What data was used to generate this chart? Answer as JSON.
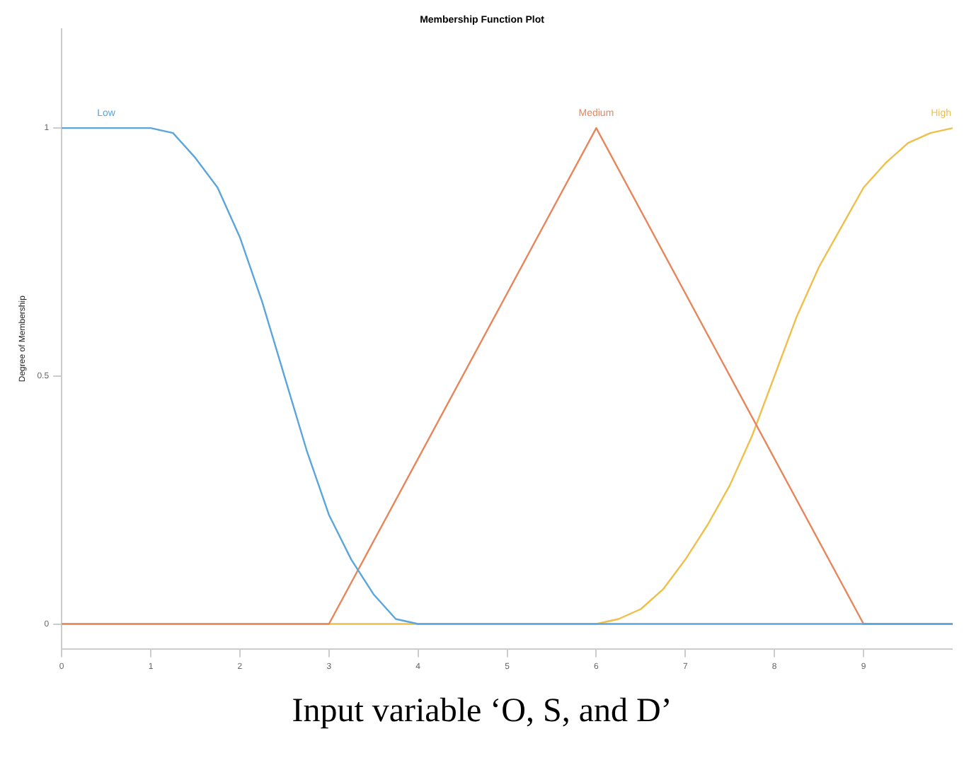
{
  "chart_data": {
    "type": "line",
    "title": "Membership Function Plot",
    "ylabel": "Degree of Membership",
    "annotations": [
      "Input variable ‘O, S, and D’"
    ],
    "xlim": [
      0,
      10
    ],
    "xticks": [
      0,
      1,
      2,
      3,
      4,
      5,
      6,
      7,
      8,
      9
    ],
    "ylim": [
      -0.05,
      1.2
    ],
    "yticks": [
      0,
      0.5,
      1
    ],
    "grid": false,
    "legend": false,
    "marker": "none",
    "series": [
      {
        "name": "Low",
        "color": "#5aa5dc",
        "x": [
          0,
          1,
          1.25,
          1.5,
          1.75,
          2,
          2.25,
          2.5,
          2.75,
          3,
          3.25,
          3.5,
          3.75,
          4,
          10
        ],
        "values": [
          1,
          1,
          0.99,
          0.94,
          0.88,
          0.78,
          0.65,
          0.5,
          0.35,
          0.22,
          0.13,
          0.06,
          0.01,
          0,
          0
        ]
      },
      {
        "name": "Medium",
        "color": "#e8855a",
        "x": [
          0,
          3,
          6,
          9,
          10
        ],
        "values": [
          0,
          0,
          1,
          0,
          0
        ]
      },
      {
        "name": "High",
        "color": "#efbf4a",
        "x": [
          0,
          6,
          6.25,
          6.5,
          6.75,
          7,
          7.25,
          7.5,
          7.75,
          8,
          8.25,
          8.5,
          8.75,
          9,
          9.25,
          9.5,
          9.75,
          10
        ],
        "values": [
          0,
          0,
          0.01,
          0.03,
          0.07,
          0.13,
          0.2,
          0.28,
          0.38,
          0.5,
          0.62,
          0.72,
          0.8,
          0.88,
          0.93,
          0.97,
          0.99,
          1
        ]
      }
    ]
  }
}
